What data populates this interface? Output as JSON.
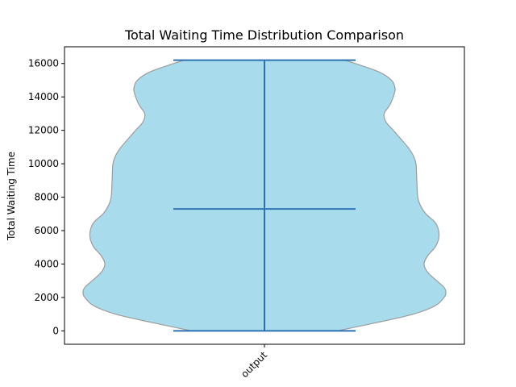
{
  "chart_data": {
    "type": "violin",
    "title": "Total Waiting Time Distribution Comparison",
    "xlabel": "",
    "ylabel": "Total Waiting Time",
    "categories": [
      "output"
    ],
    "yticks": [
      0,
      2000,
      4000,
      6000,
      8000,
      10000,
      12000,
      14000,
      16000
    ],
    "ytick_labels": [
      "0",
      "2000",
      "4000",
      "6000",
      "8000",
      "10000",
      "12000",
      "14000",
      "16000"
    ],
    "ylim": [
      -800,
      17000
    ],
    "violin": {
      "min": 0,
      "median": 7300,
      "max": 16200,
      "density_profile": [
        [
          0,
          0.4
        ],
        [
          500,
          0.62
        ],
        [
          1000,
          0.82
        ],
        [
          1500,
          0.94
        ],
        [
          2000,
          0.99
        ],
        [
          2300,
          1.0
        ],
        [
          2600,
          0.99
        ],
        [
          3000,
          0.95
        ],
        [
          3500,
          0.9
        ],
        [
          4000,
          0.88
        ],
        [
          4500,
          0.9
        ],
        [
          5000,
          0.94
        ],
        [
          5500,
          0.96
        ],
        [
          6000,
          0.96
        ],
        [
          6500,
          0.94
        ],
        [
          7000,
          0.89
        ],
        [
          7500,
          0.86
        ],
        [
          8000,
          0.845
        ],
        [
          9000,
          0.84
        ],
        [
          10000,
          0.835
        ],
        [
          10500,
          0.82
        ],
        [
          11000,
          0.79
        ],
        [
          12000,
          0.71
        ],
        [
          12500,
          0.67
        ],
        [
          13000,
          0.66
        ],
        [
          13500,
          0.69
        ],
        [
          14000,
          0.71
        ],
        [
          14500,
          0.72
        ],
        [
          15000,
          0.7
        ],
        [
          15500,
          0.63
        ],
        [
          16000,
          0.5
        ],
        [
          16200,
          0.44
        ]
      ]
    },
    "colors": {
      "fill": "#a8dced",
      "edge": "#9c9c9c",
      "lines": "#2c72b3"
    },
    "grid": false,
    "legend": "none"
  }
}
